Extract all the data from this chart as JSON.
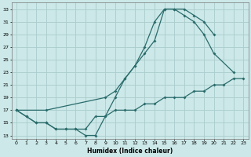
{
  "xlabel": "Humidex (Indice chaleur)",
  "background_color": "#cce8e8",
  "grid_color": "#aacccc",
  "line_color": "#2a6b6b",
  "xlim": [
    -0.5,
    23.5
  ],
  "ylim": [
    12.5,
    34
  ],
  "yticks": [
    13,
    15,
    17,
    19,
    21,
    23,
    25,
    27,
    29,
    31,
    33
  ],
  "xticks": [
    0,
    1,
    2,
    3,
    4,
    5,
    6,
    7,
    8,
    9,
    10,
    11,
    12,
    13,
    14,
    15,
    16,
    17,
    18,
    19,
    20,
    21,
    22,
    23
  ],
  "series": [
    {
      "x": [
        0,
        1,
        2,
        3,
        4,
        5,
        6,
        7,
        8,
        9,
        10,
        11,
        12,
        13,
        14,
        15,
        16,
        17,
        18,
        19,
        20
      ],
      "y": [
        17,
        16,
        15,
        15,
        14,
        14,
        14,
        13,
        13,
        16,
        19,
        22,
        24,
        27,
        31,
        33,
        33,
        33,
        32,
        31,
        29
      ]
    },
    {
      "x": [
        0,
        3,
        9,
        10,
        11,
        12,
        13,
        14,
        15,
        16,
        17,
        18,
        19,
        20,
        21,
        22,
        23
      ],
      "y": [
        17,
        17,
        19,
        20,
        22,
        24,
        26,
        28,
        33,
        33,
        32,
        31,
        29,
        26,
        null,
        23,
        null
      ]
    },
    {
      "x": [
        0,
        1,
        2,
        3,
        4,
        5,
        6,
        7,
        8,
        9,
        10,
        11,
        12,
        13,
        14,
        15,
        16,
        17,
        18,
        19,
        20,
        21,
        22,
        23
      ],
      "y": [
        17,
        16,
        15,
        15,
        14,
        14,
        14,
        14,
        16,
        16,
        17,
        17,
        17,
        18,
        18,
        19,
        19,
        19,
        20,
        20,
        21,
        21,
        22,
        22
      ]
    }
  ]
}
